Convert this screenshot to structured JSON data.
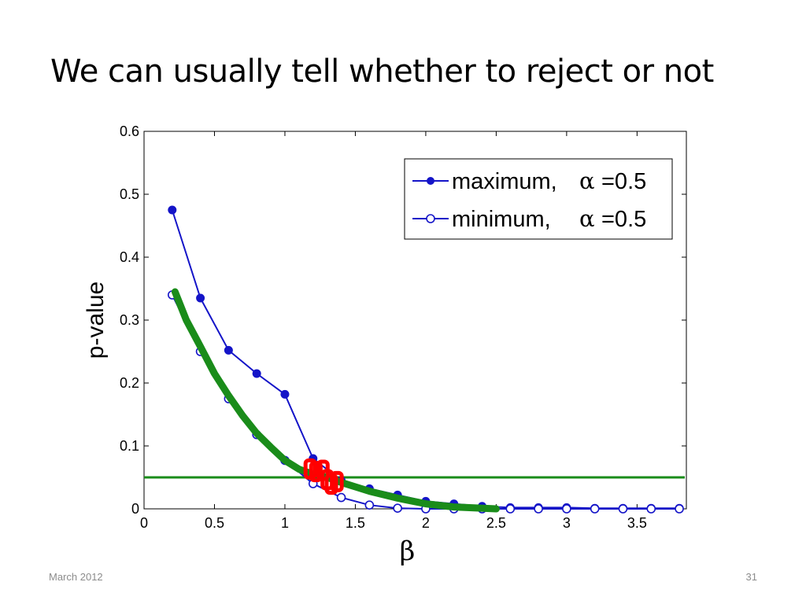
{
  "slide": {
    "title": "We can usually tell whether to reject or not",
    "footer_date": "March 2012",
    "page_number": "31"
  },
  "chart_data": {
    "type": "line",
    "xlabel": "β",
    "ylabel": "p-value",
    "xlim": [
      0,
      3.85
    ],
    "ylim": [
      0,
      0.6
    ],
    "xticks": [
      0,
      0.5,
      1,
      1.5,
      2,
      2.5,
      3,
      3.5
    ],
    "xtick_labels": [
      "0",
      "0.5",
      "1",
      "1.5",
      "2",
      "2.5",
      "3",
      "3.5"
    ],
    "yticks": [
      0,
      0.1,
      0.2,
      0.3,
      0.4,
      0.5,
      0.6
    ],
    "ytick_labels": [
      "0",
      "0.1",
      "0.2",
      "0.3",
      "0.4",
      "0.5",
      "0.6"
    ],
    "grid": false,
    "legend_position": "top-right",
    "legend": [
      {
        "label": "maximum,",
        "alpha_symbol": "α",
        "alpha_value": "=0.5",
        "marker": "filled"
      },
      {
        "label": "minimum,",
        "alpha_symbol": "α",
        "alpha_value": "=0.5",
        "marker": "open"
      }
    ],
    "series": [
      {
        "marker": "filled",
        "color": "#1414c8",
        "x": [
          0.2,
          0.4,
          0.6,
          0.8,
          1.0,
          1.2,
          1.4,
          1.6,
          1.8,
          2.0,
          2.2,
          2.4,
          2.6,
          2.8,
          3.0,
          3.2,
          3.4,
          3.6,
          3.8
        ],
        "y": [
          0.475,
          0.335,
          0.252,
          0.215,
          0.182,
          0.08,
          0.045,
          0.032,
          0.022,
          0.012,
          0.008,
          0.004,
          0.002,
          0.002,
          0.002,
          0.001,
          0.001,
          0.001,
          0.001
        ]
      },
      {
        "marker": "open",
        "color": "#1414c8",
        "x": [
          0.2,
          0.4,
          0.6,
          0.8,
          1.0,
          1.2,
          1.4,
          1.6,
          1.8,
          2.0,
          2.2,
          2.4,
          2.6,
          2.8,
          3.0,
          3.2,
          3.4,
          3.6,
          3.8
        ],
        "y": [
          0.34,
          0.25,
          0.175,
          0.118,
          0.077,
          0.04,
          0.018,
          0.006,
          0.001,
          0,
          0,
          0,
          0,
          0,
          0,
          0,
          0,
          0,
          0
        ]
      }
    ],
    "annotations": {
      "threshold": {
        "y": 0.05,
        "color": "#1a8c1a"
      },
      "fit_curve": {
        "color": "#1a8c1a",
        "x": [
          0.22,
          0.3,
          0.4,
          0.5,
          0.6,
          0.7,
          0.8,
          0.9,
          1.0,
          1.1,
          1.2,
          1.3,
          1.4,
          1.5,
          1.6,
          1.8,
          2.0,
          2.2,
          2.5
        ],
        "y": [
          0.345,
          0.3,
          0.258,
          0.215,
          0.18,
          0.148,
          0.12,
          0.098,
          0.077,
          0.063,
          0.055,
          0.05,
          0.042,
          0.035,
          0.028,
          0.017,
          0.008,
          0.003,
          0.0
        ]
      },
      "crossing_markers": {
        "color": "#ff0000",
        "x": [
          1.18,
          1.22,
          1.27,
          1.3,
          1.33,
          1.37
        ],
        "y": [
          0.062,
          0.058,
          0.06,
          0.045,
          0.038,
          0.042
        ]
      }
    }
  }
}
